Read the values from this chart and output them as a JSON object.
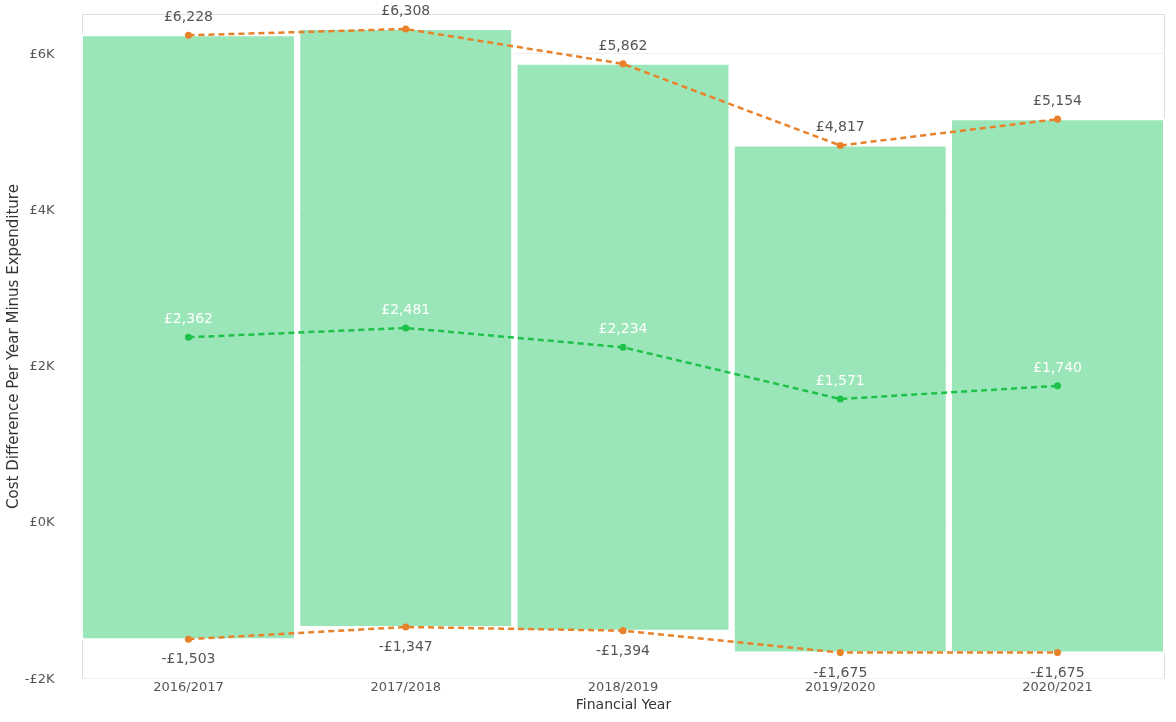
{
  "chart_data": {
    "type": "bar",
    "xlabel": "Financial Year",
    "ylabel": "Cost Difference Per Year Minus Expenditure",
    "categories": [
      "2016/2017",
      "2017/2018",
      "2018/2019",
      "2019/2020",
      "2020/2021"
    ],
    "ylim": [
      -2000,
      6500
    ],
    "yticks": [
      {
        "value": -2000,
        "label": "-£2K"
      },
      {
        "value": 0,
        "label": "£0K"
      },
      {
        "value": 2000,
        "label": "£2K"
      },
      {
        "value": 4000,
        "label": "£4K"
      },
      {
        "value": 6000,
        "label": "£6K"
      }
    ],
    "grid": "y",
    "series": [
      {
        "color": "#9ae6b8",
        "base": [
          -1503,
          -1347,
          -1394,
          -1675,
          -1675
        ],
        "values": [
          7731,
          7655,
          7256,
          6492,
          6829
        ]
      },
      {
        "type": "line",
        "color": "#e8822a",
        "values": [
          6228,
          6308,
          5862,
          4817,
          5154
        ],
        "value_labels": [
          "£6,228",
          "£6,308",
          "£5,862",
          "£4,817",
          "£5,154"
        ],
        "line_style": "dashed",
        "marker": "circle"
      },
      {
        "type": "line",
        "color": "#1ec24a",
        "values": [
          2362,
          2481,
          2234,
          1571,
          1740
        ],
        "value_labels": [
          "£2,362",
          "£2,481",
          "£2,234",
          "£1,571",
          "£1,740"
        ],
        "line_style": "dashed",
        "marker": "circle"
      },
      {
        "type": "line",
        "color": "#e8822a",
        "values": [
          -1503,
          -1347,
          -1394,
          -1675,
          -1675
        ],
        "value_labels": [
          "-£1,503",
          "-£1,347",
          "-£1,394",
          "-£1,675",
          "-£1,675"
        ],
        "line_style": "dashed",
        "marker": "circle"
      }
    ]
  }
}
